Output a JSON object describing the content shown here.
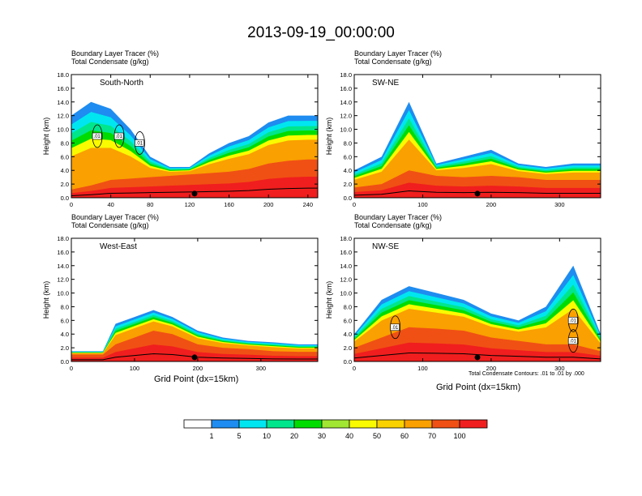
{
  "title": "2013-09-19_00:00:00",
  "contour_note": "Total Condensate Contours: .01 to .01 by .000",
  "colorbar": {
    "colors": [
      "#ffffff",
      "#1e8cf0",
      "#00e6f0",
      "#00e68c",
      "#00dc00",
      "#a0e632",
      "#fafa00",
      "#fad200",
      "#faa000",
      "#f05014",
      "#f01e1e"
    ],
    "labels": [
      "1",
      "5",
      "10",
      "20",
      "30",
      "40",
      "50",
      "60",
      "70",
      "100"
    ]
  },
  "chart_data": [
    {
      "type": "heatmap",
      "subtitle_line1": "Boundary Layer Tracer    (%)",
      "subtitle_line2": "Total Condensate    (g/kg)",
      "panel_label": "South-North",
      "ylabel": "Height (km)",
      "xlabel": "",
      "xlim": [
        0,
        250
      ],
      "ylim": [
        0,
        18
      ],
      "xticks": [
        0,
        40,
        80,
        120,
        160,
        200,
        240
      ],
      "yticks": [
        "0.0",
        "2.0",
        "4.0",
        "6.0",
        "8.0",
        "10.0",
        "12.0",
        "14.0",
        "16.0",
        "18.0"
      ],
      "contour_labels": [
        ".01",
        ".01",
        ".01"
      ],
      "profile_x": [
        0,
        20,
        40,
        60,
        80,
        100,
        120,
        140,
        160,
        180,
        200,
        220,
        240,
        250
      ],
      "boundary_top_km": [
        1.2,
        1.8,
        2.6,
        2.8,
        3.0,
        3.2,
        3.4,
        3.6,
        3.8,
        4.2,
        5.0,
        5.4,
        5.6,
        5.6
      ],
      "tracer_top_km": [
        12,
        14,
        13,
        10,
        6,
        4.5,
        4.5,
        6.5,
        8,
        9,
        11,
        12,
        12,
        12
      ]
    },
    {
      "type": "heatmap",
      "subtitle_line1": "Boundary Layer Tracer    (%)",
      "subtitle_line2": "Total Condensate    (g/kg)",
      "panel_label": "SW-NE",
      "ylabel": "Height (km)",
      "xlabel": "",
      "xlim": [
        0,
        360
      ],
      "ylim": [
        0,
        18
      ],
      "xticks": [
        0,
        100,
        200,
        300
      ],
      "yticks": [
        "0.0",
        "2.0",
        "4.0",
        "6.0",
        "8.0",
        "10.0",
        "12.0",
        "14.0",
        "16.0",
        "18.0"
      ],
      "contour_labels": [],
      "profile_x": [
        0,
        40,
        80,
        120,
        160,
        200,
        240,
        280,
        320,
        360
      ],
      "boundary_top_km": [
        1.5,
        2.0,
        4.0,
        3.2,
        3.0,
        3.2,
        3.0,
        2.6,
        2.6,
        2.6
      ],
      "tracer_top_km": [
        4,
        6,
        14,
        5,
        6,
        7,
        5,
        4.5,
        5,
        5
      ]
    },
    {
      "type": "heatmap",
      "subtitle_line1": "Boundary Layer Tracer    (%)",
      "subtitle_line2": "Total Condensate    (g/kg)",
      "panel_label": "West-East",
      "ylabel": "Height (km)",
      "xlabel": "Grid Point (dx=15km)",
      "xlim": [
        0,
        390
      ],
      "ylim": [
        0,
        18
      ],
      "xticks": [
        0,
        100,
        200,
        300
      ],
      "yticks": [
        "0.0",
        "2.0",
        "4.0",
        "6.0",
        "8.0",
        "10.0",
        "12.0",
        "14.0",
        "16.0",
        "18.0"
      ],
      "contour_labels": [],
      "profile_x": [
        0,
        50,
        70,
        100,
        130,
        160,
        200,
        240,
        280,
        320,
        360,
        390
      ],
      "boundary_top_km": [
        1.0,
        1.0,
        2.5,
        3.5,
        4.5,
        4.0,
        2.5,
        2.0,
        1.8,
        1.5,
        1.4,
        1.4
      ],
      "tracer_top_km": [
        1.5,
        1.5,
        5.5,
        6.5,
        7.5,
        6.5,
        4.5,
        3.5,
        3.0,
        2.8,
        2.5,
        2.5
      ]
    },
    {
      "type": "heatmap",
      "subtitle_line1": "Boundary Layer Tracer    (%)",
      "subtitle_line2": "Total Condensate    (g/kg)",
      "panel_label": "NW-SE",
      "ylabel": "Height (km)",
      "xlabel": "Grid Point (dx=15km)",
      "xlim": [
        0,
        360
      ],
      "ylim": [
        0,
        18
      ],
      "xticks": [
        0,
        100,
        200,
        300
      ],
      "yticks": [
        "0.0",
        "2.0",
        "4.0",
        "6.0",
        "8.0",
        "10.0",
        "12.0",
        "14.0",
        "16.0",
        "18.0"
      ],
      "contour_labels": [
        ".01",
        ".01",
        ".01"
      ],
      "profile_x": [
        0,
        40,
        80,
        120,
        160,
        200,
        240,
        280,
        320,
        360
      ],
      "boundary_top_km": [
        2.0,
        3.5,
        5.0,
        4.8,
        4.5,
        3.5,
        3.0,
        2.5,
        2.5,
        1.5
      ],
      "tracer_top_km": [
        4,
        9,
        11,
        10,
        9,
        7,
        6,
        8,
        14,
        4
      ]
    }
  ]
}
